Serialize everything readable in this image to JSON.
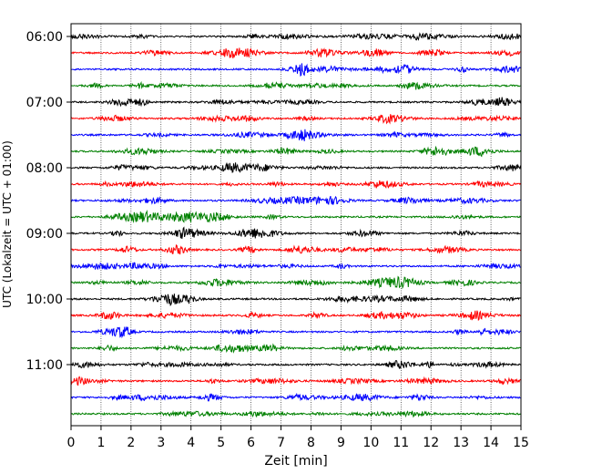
{
  "chart_data": {
    "type": "line",
    "title": "",
    "xlabel": "Zeit  [min]",
    "ylabel": "UTC (Lokalzeit = UTC + 01:00)",
    "xlim": [
      0,
      15
    ],
    "x_ticks": [
      "0",
      "1",
      "2",
      "3",
      "4",
      "5",
      "6",
      "7",
      "8",
      "9",
      "10",
      "11",
      "12",
      "13",
      "14",
      "15"
    ],
    "y_ticks": [
      "06:00",
      "07:00",
      "08:00",
      "09:00",
      "10:00",
      "11:00"
    ],
    "trace_start_times": [
      "06:00",
      "06:15",
      "06:30",
      "06:45",
      "07:00",
      "07:15",
      "07:30",
      "07:45",
      "08:00",
      "08:15",
      "08:30",
      "08:45",
      "09:00",
      "09:15",
      "09:30",
      "09:45",
      "10:00",
      "10:15",
      "10:30",
      "10:45",
      "11:00",
      "11:15",
      "11:30",
      "11:45"
    ],
    "trace_colors": [
      "#000000",
      "#ff0000",
      "#0000ff",
      "#008000"
    ],
    "grid": {
      "x": true,
      "y": false,
      "style": "dotted"
    }
  }
}
